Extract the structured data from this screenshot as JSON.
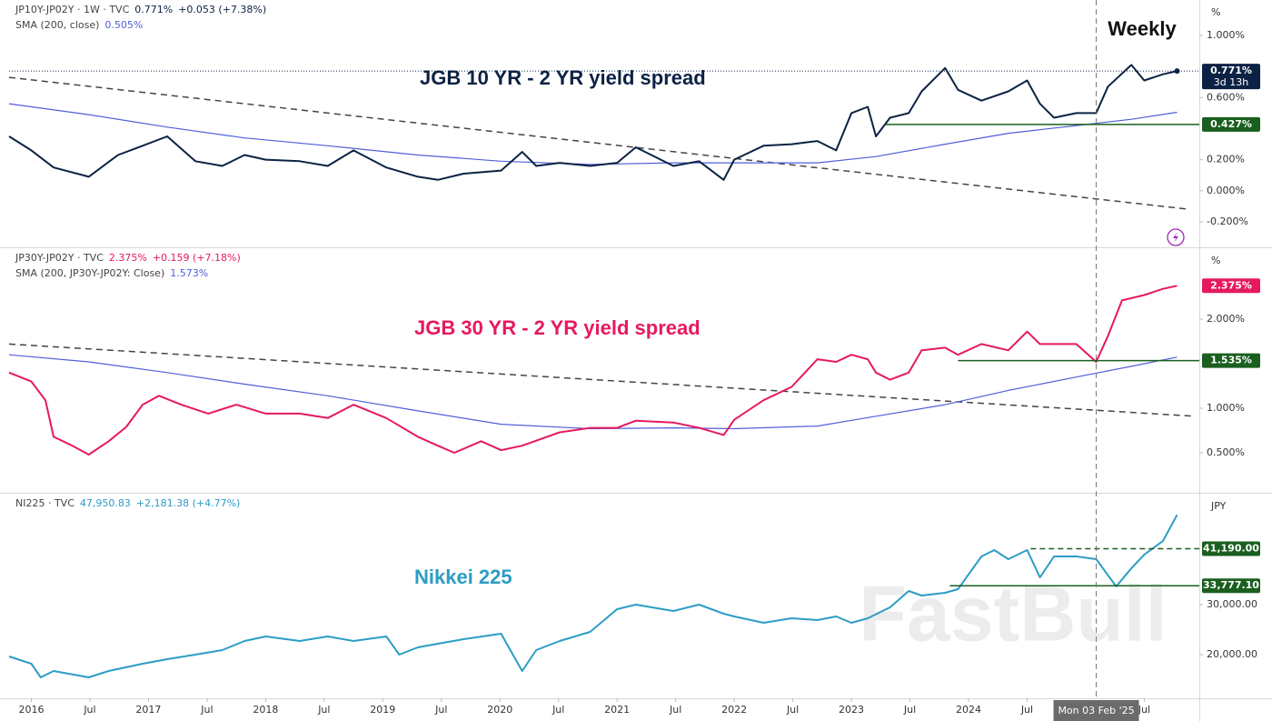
{
  "watermark": "FastBull",
  "chart_data": [
    {
      "type": "line",
      "title": "JGB 10 YR - 2 YR yield spread",
      "title_color": "#0c2244",
      "annotation": "Weekly",
      "unit": "%",
      "countdown": "3d 13h",
      "xlim": [
        2015.81,
        2025.97
      ],
      "ylim": [
        -0.364,
        1.228
      ],
      "grid": false,
      "yticks": [
        {
          "value": 1,
          "label": "1.000%"
        },
        {
          "value": 0.6,
          "label": "0.600%"
        },
        {
          "value": 0.2,
          "label": "0.200%"
        },
        {
          "value": 0,
          "label": "0.000%"
        },
        {
          "value": -0.2,
          "label": "-0.200%"
        }
      ],
      "series": [
        {
          "name": "JP10Y-JP02Y · 1W · TVC",
          "color": "#0c2244",
          "legend_values": [
            "0.771%",
            "+0.053 (+7.38%)"
          ],
          "x": [
            2015.81,
            2016.0,
            2016.19,
            2016.49,
            2016.74,
            2016.95,
            2017.16,
            2017.4,
            2017.63,
            2017.82,
            2018.0,
            2018.29,
            2018.53,
            2018.75,
            2019.03,
            2019.3,
            2019.47,
            2019.69,
            2020.01,
            2020.19,
            2020.31,
            2020.51,
            2020.77,
            2021.0,
            2021.16,
            2021.48,
            2021.7,
            2021.91,
            2022.0,
            2022.25,
            2022.49,
            2022.71,
            2022.87,
            2023.0,
            2023.14,
            2023.21,
            2023.33,
            2023.49,
            2023.6,
            2023.8,
            2023.91,
            2024.11,
            2024.34,
            2024.5,
            2024.61,
            2024.73,
            2024.92,
            2025.09,
            2025.19,
            2025.39,
            2025.5,
            2025.66,
            2025.78
          ],
          "values": [
            0.35,
            0.26,
            0.15,
            0.09,
            0.23,
            0.29,
            0.35,
            0.19,
            0.16,
            0.23,
            0.2,
            0.19,
            0.16,
            0.26,
            0.15,
            0.09,
            0.07,
            0.11,
            0.13,
            0.25,
            0.16,
            0.18,
            0.16,
            0.18,
            0.28,
            0.16,
            0.19,
            0.07,
            0.2,
            0.29,
            0.3,
            0.32,
            0.26,
            0.5,
            0.54,
            0.35,
            0.47,
            0.5,
            0.64,
            0.79,
            0.65,
            0.58,
            0.64,
            0.71,
            0.56,
            0.47,
            0.5,
            0.5,
            0.67,
            0.81,
            0.71,
            0.75,
            0.771
          ]
        },
        {
          "name": "SMA (200, close)",
          "color": "#5060d8",
          "legend_values": [
            "0.505%"
          ],
          "x": [
            2015.81,
            2016.49,
            2017.16,
            2017.82,
            2018.53,
            2019.3,
            2020.01,
            2020.77,
            2021.48,
            2022.0,
            2022.71,
            2023.21,
            2023.8,
            2024.34,
            2024.92,
            2025.39,
            2025.78
          ],
          "values": [
            0.56,
            0.49,
            0.41,
            0.34,
            0.29,
            0.23,
            0.19,
            0.17,
            0.18,
            0.18,
            0.18,
            0.22,
            0.3,
            0.37,
            0.42,
            0.46,
            0.505
          ]
        }
      ],
      "trendline": {
        "x": [
          2015.81,
          2025.89
        ],
        "values": [
          0.73,
          -0.12
        ]
      },
      "levels": [
        {
          "value": 0.427,
          "label": "0.427%",
          "x0": 2023.29,
          "style": "solid",
          "color": "#1a5f1f"
        }
      ]
    },
    {
      "type": "line",
      "title": "JGB 30 YR - 2 YR yield spread",
      "title_color": "#e6195f",
      "unit": "%",
      "xlim": [
        2015.81,
        2025.97
      ],
      "ylim": [
        0.051,
        2.796
      ],
      "grid": false,
      "yticks": [
        {
          "value": 2,
          "label": "2.000%"
        },
        {
          "value": 1,
          "label": "1.000%"
        },
        {
          "value": 0.5,
          "label": "0.500%"
        }
      ],
      "series": [
        {
          "name": "JP30Y-JP02Y · TVC",
          "color": "#e6195f",
          "legend_values": [
            "2.375%",
            "+0.159 (+7.18%)"
          ],
          "x": [
            2015.81,
            2016.0,
            2016.12,
            2016.19,
            2016.35,
            2016.49,
            2016.66,
            2016.81,
            2016.95,
            2017.09,
            2017.28,
            2017.51,
            2017.75,
            2018.0,
            2018.29,
            2018.53,
            2018.75,
            2019.03,
            2019.3,
            2019.47,
            2019.61,
            2019.84,
            2020.01,
            2020.19,
            2020.51,
            2020.77,
            2021.0,
            2021.16,
            2021.48,
            2021.7,
            2021.91,
            2022.0,
            2022.25,
            2022.49,
            2022.71,
            2022.87,
            2023.0,
            2023.14,
            2023.21,
            2023.33,
            2023.49,
            2023.6,
            2023.8,
            2023.91,
            2024.11,
            2024.34,
            2024.5,
            2024.61,
            2024.73,
            2024.92,
            2025.09,
            2025.19,
            2025.31,
            2025.5,
            2025.66,
            2025.78
          ],
          "values": [
            1.4,
            1.3,
            1.09,
            0.68,
            0.58,
            0.48,
            0.63,
            0.79,
            1.04,
            1.14,
            1.04,
            0.94,
            1.04,
            0.94,
            0.94,
            0.89,
            1.04,
            0.89,
            0.68,
            0.58,
            0.5,
            0.63,
            0.53,
            0.58,
            0.73,
            0.78,
            0.78,
            0.86,
            0.84,
            0.78,
            0.7,
            0.87,
            1.09,
            1.24,
            1.55,
            1.52,
            1.6,
            1.55,
            1.4,
            1.32,
            1.4,
            1.65,
            1.68,
            1.6,
            1.72,
            1.65,
            1.86,
            1.72,
            1.72,
            1.72,
            1.52,
            1.81,
            2.21,
            2.27,
            2.34,
            2.375
          ]
        },
        {
          "name": "SMA (200, JP30Y-JP02Y: Close)",
          "color": "#5060d8",
          "legend_values": [
            "1.573%"
          ],
          "x": [
            2015.81,
            2016.49,
            2017.16,
            2017.82,
            2018.53,
            2019.3,
            2020.01,
            2020.77,
            2021.48,
            2022.0,
            2022.71,
            2023.21,
            2023.8,
            2024.34,
            2024.92,
            2025.39,
            2025.78
          ],
          "values": [
            1.6,
            1.52,
            1.4,
            1.27,
            1.14,
            0.97,
            0.82,
            0.77,
            0.78,
            0.77,
            0.8,
            0.91,
            1.04,
            1.2,
            1.35,
            1.47,
            1.573
          ]
        }
      ],
      "trendline": {
        "x": [
          2015.81,
          2025.93
        ],
        "values": [
          1.72,
          0.91
        ]
      },
      "levels": [
        {
          "value": 1.535,
          "label": "1.535%",
          "x0": 2023.91,
          "style": "solid",
          "color": "#1a5f1f"
        }
      ]
    },
    {
      "type": "line",
      "title": "Nikkei 225",
      "title_color": "#2c9dc4",
      "unit": "JPY",
      "xlim": [
        2015.81,
        2025.97
      ],
      "ylim": [
        11273,
        52182
      ],
      "grid": false,
      "yticks": [
        {
          "value": 30000,
          "label": "30,000.00"
        },
        {
          "value": 20000,
          "label": "20,000.00"
        }
      ],
      "xticks": [
        2016,
        {
          "value": 2016.5,
          "label": "Jul"
        },
        2017,
        {
          "value": 2017.5,
          "label": "Jul"
        },
        2018,
        {
          "value": 2018.5,
          "label": "Jul"
        },
        2019,
        {
          "value": 2019.5,
          "label": "Jul"
        },
        2020,
        {
          "value": 2020.5,
          "label": "Jul"
        },
        2021,
        {
          "value": 2021.5,
          "label": "Jul"
        },
        2022,
        {
          "value": 2022.5,
          "label": "Jul"
        },
        2023,
        {
          "value": 2023.5,
          "label": "Jul"
        },
        2024,
        {
          "value": 2024.5,
          "label": "Jul"
        },
        {
          "value": 2025.5,
          "label": "Jul"
        }
      ],
      "crosshair": {
        "x": 2025.09,
        "label": "Mon 03 Feb '25"
      },
      "series": [
        {
          "name": "NI225 · TVC",
          "color": "#2c9dc4",
          "legend_values": [
            "47,950.83",
            "+2,181.38 (+4.77%)"
          ],
          "x": [
            2015.81,
            2016.0,
            2016.08,
            2016.19,
            2016.49,
            2016.66,
            2016.95,
            2017.16,
            2017.4,
            2017.63,
            2017.82,
            2018.0,
            2018.29,
            2018.53,
            2018.75,
            2019.03,
            2019.14,
            2019.3,
            2019.47,
            2019.69,
            2020.01,
            2020.19,
            2020.31,
            2020.51,
            2020.77,
            2021.0,
            2021.16,
            2021.48,
            2021.7,
            2021.91,
            2022.0,
            2022.25,
            2022.49,
            2022.71,
            2022.87,
            2023.0,
            2023.14,
            2023.33,
            2023.49,
            2023.6,
            2023.8,
            2023.91,
            2024.11,
            2024.22,
            2024.34,
            2024.5,
            2024.61,
            2024.73,
            2024.92,
            2025.09,
            2025.26,
            2025.39,
            2025.5,
            2025.66,
            2025.78
          ],
          "values": [
            19636,
            18182,
            15455,
            16727,
            15455,
            16727,
            18182,
            19091,
            20000,
            20909,
            22727,
            23636,
            22727,
            23636,
            22727,
            23636,
            20000,
            21455,
            22182,
            23091,
            24182,
            16727,
            20909,
            22727,
            24545,
            29091,
            30000,
            28727,
            30000,
            28182,
            27636,
            26364,
            27273,
            26909,
            27636,
            26364,
            27273,
            29455,
            32727,
            31818,
            32364,
            33091,
            39636,
            40909,
            39091,
            40909,
            35455,
            39636,
            39636,
            39091,
            33636,
            37273,
            40000,
            42727,
            47950.83
          ]
        }
      ],
      "levels": [
        {
          "value": 41190,
          "label": "41,190.00",
          "x0": 2024.53,
          "style": "dashed",
          "color": "#1a5f1f"
        },
        {
          "value": 33777.1,
          "label": "33,777.10",
          "x0": 2023.84,
          "style": "solid",
          "color": "#1a5f1f"
        }
      ]
    }
  ]
}
